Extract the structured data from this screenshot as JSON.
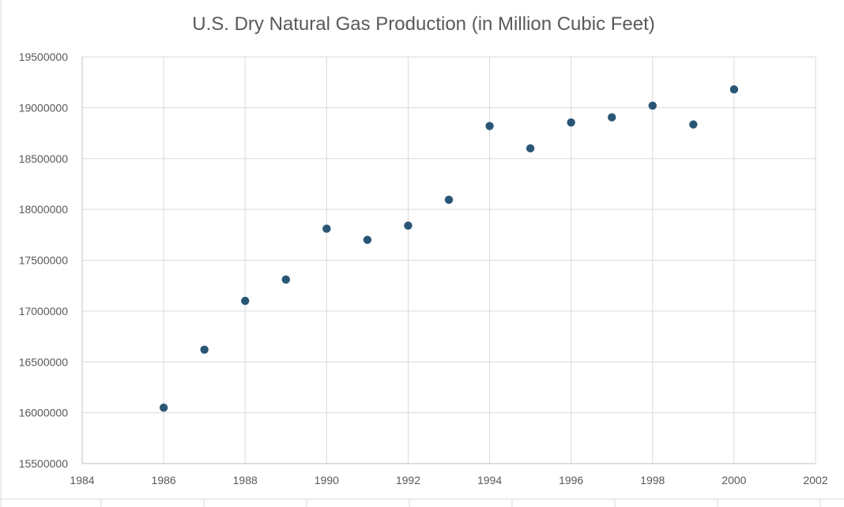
{
  "chart_data": {
    "type": "scatter",
    "title": "U.S. Dry Natural Gas Production (in Million Cubic Feet)",
    "xlabel": "",
    "ylabel": "",
    "xlim": [
      1984,
      2002
    ],
    "ylim": [
      15500000,
      19500000
    ],
    "x_ticks": [
      1984,
      1986,
      1988,
      1990,
      1992,
      1994,
      1996,
      1998,
      2000,
      2002
    ],
    "y_ticks": [
      15500000,
      16000000,
      16500000,
      17000000,
      17500000,
      18000000,
      18500000,
      19000000,
      19500000
    ],
    "x_tick_labels": [
      "1984",
      "1986",
      "1988",
      "1990",
      "1992",
      "1994",
      "1996",
      "1998",
      "2000",
      "2002"
    ],
    "y_tick_labels": [
      "15500000",
      "16000000",
      "16500000",
      "17000000",
      "17500000",
      "18000000",
      "18500000",
      "19000000",
      "19500000"
    ],
    "grid": true,
    "legend": "none",
    "marker_color": "#2a5676",
    "series": [
      {
        "x": [
          1986,
          1987,
          1988,
          1989,
          1990,
          1991,
          1992,
          1993,
          1994,
          1995,
          1996,
          1997,
          1998,
          1999,
          2000
        ],
        "y": [
          16050000,
          16620000,
          17100000,
          17310000,
          17810000,
          17700000,
          17840000,
          18095000,
          18820000,
          18600000,
          18855000,
          18905000,
          19020000,
          18835000,
          19180000
        ]
      }
    ]
  }
}
